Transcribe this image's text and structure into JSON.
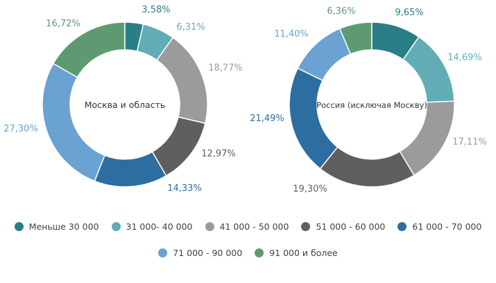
{
  "chart_data": {
    "type": "pie",
    "variant": "donut",
    "categories": [
      "Меньше 30 000",
      "31 000- 40 000",
      "41 000 - 50 000",
      "51 000 - 60 000",
      "61 000 - 70 000",
      "71 000 - 90 000",
      "91 000 и более"
    ],
    "colors": [
      "#2a7f86",
      "#61adb5",
      "#9b9b9b",
      "#5f5f60",
      "#2e6da0",
      "#6aa2d1",
      "#5e9a71"
    ],
    "legend_position": "bottom",
    "charts": [
      {
        "center_label": "Москва и область",
        "values": [
          3.58,
          6.31,
          18.77,
          12.97,
          14.33,
          27.3,
          16.72
        ],
        "labels": [
          "3,58%",
          "6,31%",
          "18,77%",
          "12,97%",
          "14,33%",
          "27,30%",
          "16,72%"
        ]
      },
      {
        "center_label": "Россия (исключая Москву)",
        "values": [
          9.65,
          14.69,
          17.11,
          19.3,
          21.49,
          11.4,
          6.36
        ],
        "labels": [
          "9,65%",
          "14,69%",
          "17,11%",
          "19,30%",
          "21,49%",
          "11,40%",
          "6,36%"
        ]
      }
    ]
  }
}
